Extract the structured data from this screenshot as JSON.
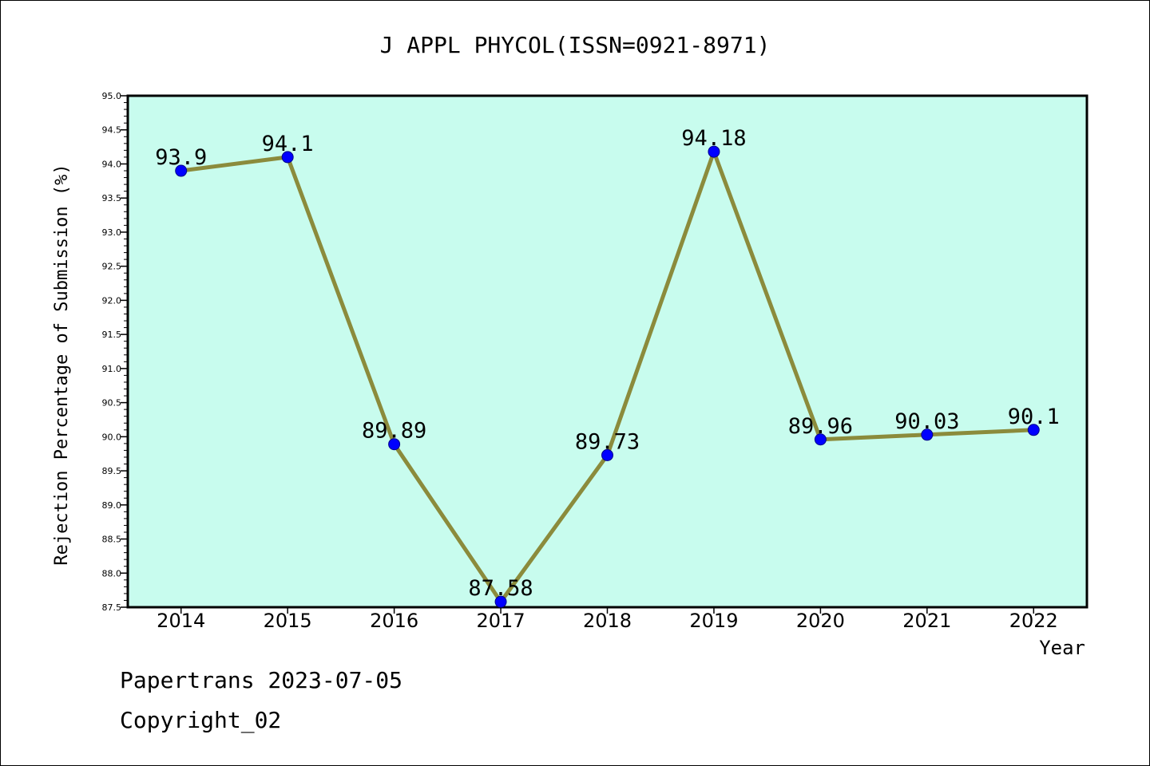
{
  "chart_data": {
    "type": "line",
    "title": "J APPL PHYCOL(ISSN=0921-8971)",
    "xlabel": "Year",
    "ylabel": "Rejection Percentage of Submission (%)",
    "x": [
      "2014",
      "2015",
      "2016",
      "2017",
      "2018",
      "2019",
      "2020",
      "2021",
      "2022"
    ],
    "values": [
      93.9,
      94.1,
      89.89,
      87.58,
      89.73,
      94.18,
      89.96,
      90.03,
      90.1
    ],
    "data_labels": [
      "93.9",
      "94.1",
      "89.89",
      "87.58",
      "89.73",
      "94.18",
      "89.96",
      "90.03",
      "90.1"
    ],
    "ylim": [
      87.5,
      95.0
    ],
    "yticks": [
      "87.5",
      "88.0",
      "88.5",
      "89.0",
      "89.5",
      "90.0",
      "90.5",
      "91.0",
      "91.5",
      "92.0",
      "92.5",
      "93.0",
      "93.5",
      "94.0",
      "94.5",
      "95.0"
    ],
    "grid": false,
    "legend": "none",
    "colors": {
      "plot_background": "#c8fcee",
      "line": "#8b8b3c",
      "marker": "#0000ff"
    }
  },
  "footer": {
    "line1": "Papertrans 2023-07-05",
    "line2": "Copyright_02"
  }
}
